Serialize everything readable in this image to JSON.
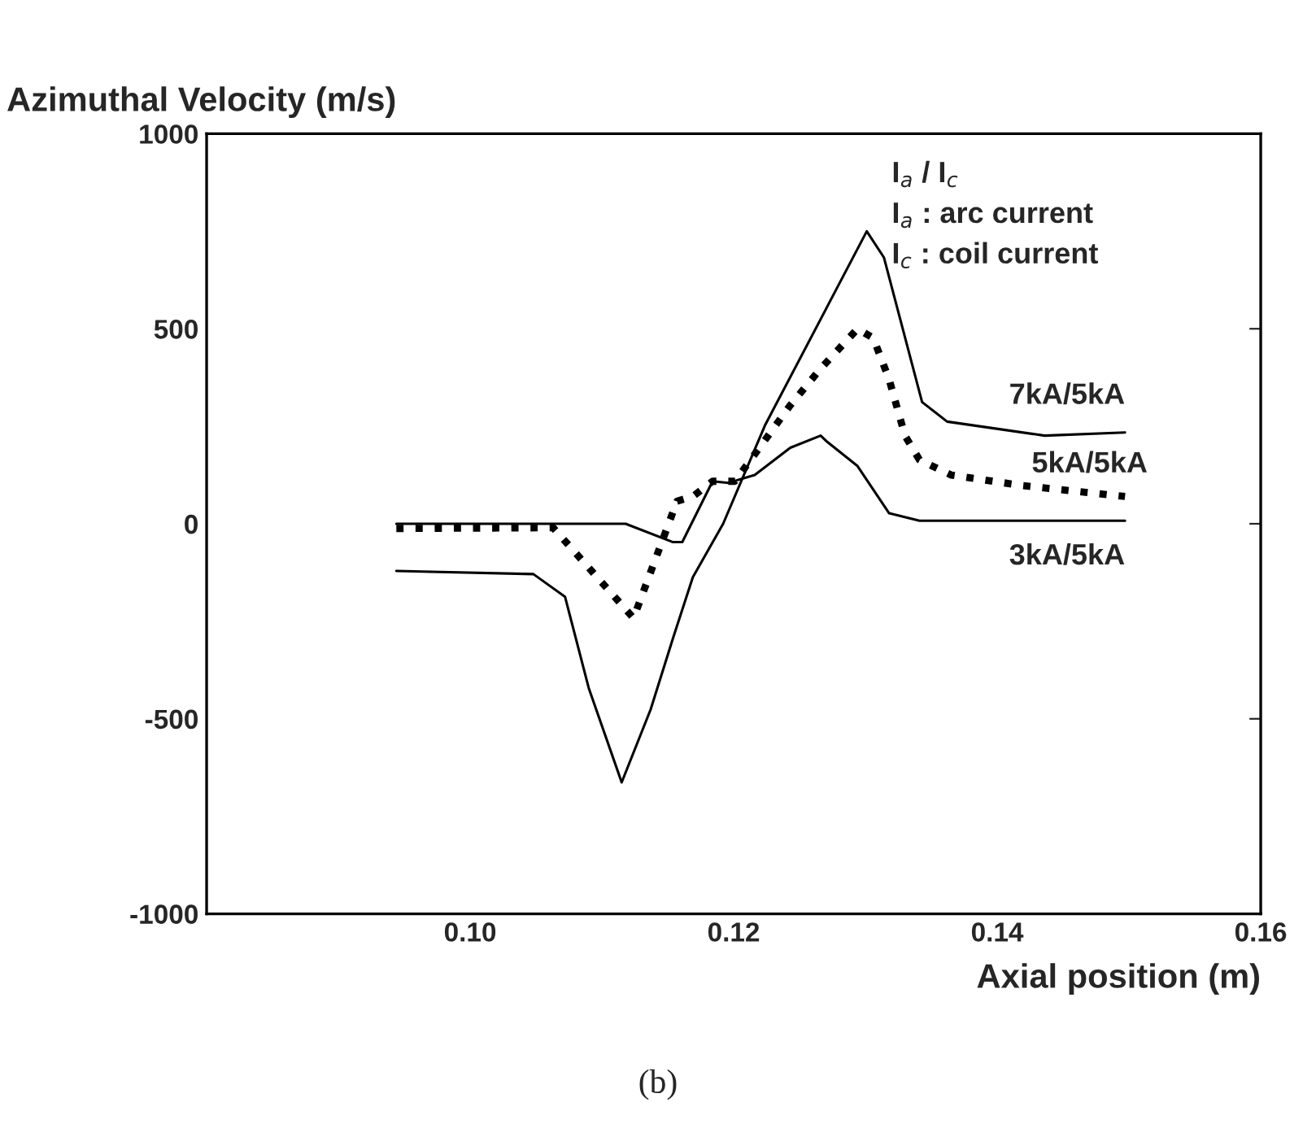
{
  "chart_data": {
    "type": "line",
    "ylabel": "Azimuthal Velocity (m/s)",
    "xlabel": "Axial position (m)",
    "xlim": [
      0.08,
      0.16
    ],
    "xticks": [
      {
        "value": 0.1,
        "label": "0.10"
      },
      0.12,
      0.14,
      0.16
    ],
    "ylim": [
      -1000,
      1000
    ],
    "yticks": [
      -1000,
      -500,
      0,
      500,
      1000
    ],
    "grid": false,
    "legend": false,
    "annotations": [
      "I$_{a}$ / I$_{c}$",
      "I$_{a}$ : arc current",
      "I$_{c}$ : coil current",
      "(b)"
    ],
    "series": [
      {
        "name": "7kA/5kA",
        "color": "#000000",
        "line_style": "solid",
        "x": [
          0.0944,
          0.1048,
          0.1072,
          0.109,
          0.1115,
          0.1137,
          0.1154,
          0.1169,
          0.1192,
          0.1224,
          0.1301,
          0.1314,
          0.1343,
          0.1362,
          0.1436,
          0.1497
        ],
        "values": [
          -121,
          -129,
          -187,
          -421,
          -663,
          -476,
          -293,
          -137,
          0,
          254,
          750,
          683,
          312,
          262,
          226,
          234
        ]
      },
      {
        "name": "5kA/5kA",
        "color": "#000000",
        "line_style": "dotted",
        "x": [
          0.0944,
          0.1063,
          0.1124,
          0.1157,
          0.1169,
          0.1184,
          0.1201,
          0.1243,
          0.1266,
          0.1294,
          0.1306,
          0.1318,
          0.133,
          0.1341,
          0.1365,
          0.1419,
          0.1497
        ],
        "values": [
          -12,
          -10,
          -242,
          58,
          70,
          109,
          109,
          304,
          398,
          500,
          476,
          370,
          226,
          164,
          125,
          98,
          70
        ]
      },
      {
        "name": "3kA/5kA",
        "color": "#000000",
        "line_style": "solid",
        "x": [
          0.0944,
          0.1118,
          0.1154,
          0.1161,
          0.1184,
          0.1196,
          0.1216,
          0.1243,
          0.1266,
          0.1271,
          0.1294,
          0.1318,
          0.1341,
          0.1497
        ],
        "values": [
          0,
          0,
          -47,
          -47,
          109,
          105,
          125,
          195,
          226,
          210,
          148,
          27,
          8,
          8
        ]
      }
    ]
  }
}
